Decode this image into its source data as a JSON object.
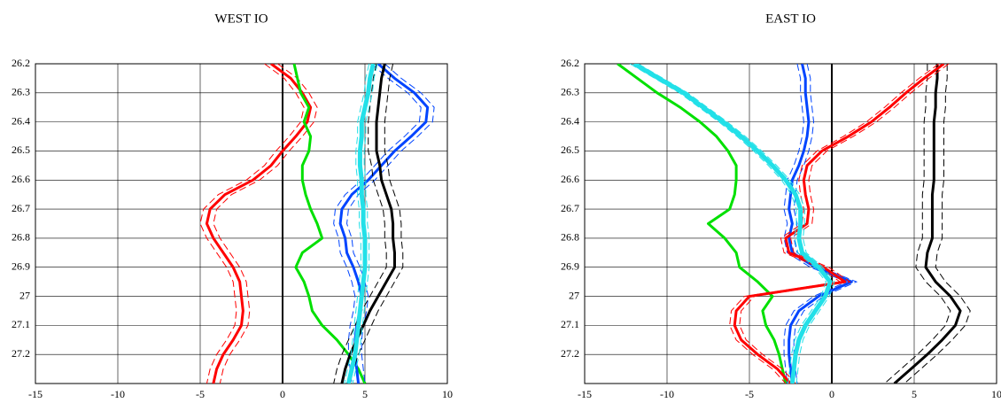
{
  "chart_data": [
    {
      "type": "line",
      "title": "WEST IO",
      "y": [
        26.2,
        26.25,
        26.3,
        26.35,
        26.4,
        26.45,
        26.5,
        26.55,
        26.6,
        26.65,
        26.7,
        26.75,
        26.8,
        26.85,
        26.9,
        26.95,
        27.0,
        27.05,
        27.1,
        27.15,
        27.2,
        27.25,
        27.3
      ],
      "ylim": [
        26.2,
        27.3
      ],
      "yticks": [
        26.2,
        26.3,
        26.4,
        26.5,
        26.6,
        26.7,
        26.8,
        26.9,
        27,
        27.1,
        27.2
      ],
      "xlim": [
        -15,
        10
      ],
      "xticks": [
        -15,
        -10,
        -5,
        0,
        5,
        10
      ],
      "grid": true,
      "y_inverted": true,
      "series": [
        {
          "color": "#ff0000",
          "error": 0.4,
          "values": [
            -0.7,
            0.5,
            1.2,
            1.7,
            1.5,
            0.8,
            0,
            -0.7,
            -1.8,
            -3.5,
            -4.4,
            -4.6,
            -4.2,
            -3.6,
            -3.0,
            -2.6,
            -2.5,
            -2.4,
            -2.5,
            -3.0,
            -3.6,
            -4.0,
            -4.2
          ]
        },
        {
          "color": "#00e000",
          "values": [
            0.7,
            0.9,
            1.1,
            1.6,
            1.3,
            1.7,
            1.6,
            1.2,
            1.2,
            1.4,
            1.7,
            2.1,
            2.4,
            1.2,
            0.8,
            1.3,
            1.6,
            1.8,
            2.4,
            3.3,
            4.0,
            4.6,
            5.0
          ]
        },
        {
          "color": "#0044ff",
          "error": 0.4,
          "values": [
            5.8,
            6.8,
            8.0,
            8.8,
            8.7,
            7.8,
            6.8,
            6.0,
            5.2,
            4.2,
            3.6,
            3.5,
            3.8,
            3.9,
            4.3,
            4.6,
            4.8,
            4.7,
            4.5,
            4.4,
            4.4,
            4.5,
            4.6
          ]
        },
        {
          "color": "#000000",
          "error": 0.5,
          "values": [
            6.2,
            6.0,
            5.9,
            5.8,
            5.7,
            5.7,
            5.7,
            5.9,
            6.0,
            6.3,
            6.6,
            6.7,
            6.7,
            6.8,
            6.8,
            6.3,
            5.8,
            5.3,
            4.9,
            4.5,
            4.1,
            3.8,
            3.6
          ]
        },
        {
          "color": "#22e0e8",
          "error": 0.25,
          "values": [
            5.5,
            5.3,
            5.2,
            5.0,
            4.8,
            4.8,
            4.7,
            4.7,
            4.8,
            4.8,
            4.9,
            4.9,
            5.0,
            5.0,
            5.0,
            4.9,
            4.8,
            4.7,
            4.6,
            4.5,
            4.4,
            4.2,
            4.0
          ]
        }
      ]
    },
    {
      "type": "line",
      "title": "EAST IO",
      "y": [
        26.2,
        26.25,
        26.3,
        26.35,
        26.4,
        26.45,
        26.5,
        26.55,
        26.6,
        26.65,
        26.7,
        26.75,
        26.8,
        26.85,
        26.9,
        26.95,
        27.0,
        27.05,
        27.1,
        27.15,
        27.2,
        27.25,
        27.3
      ],
      "ylim": [
        26.2,
        27.3
      ],
      "yticks": [
        26.2,
        26.3,
        26.4,
        26.5,
        26.6,
        26.7,
        26.8,
        26.9,
        27,
        27.1,
        27.2
      ],
      "xlim": [
        -15,
        10
      ],
      "xticks": [
        -15,
        -10,
        -5,
        0,
        5,
        10
      ],
      "grid": true,
      "y_inverted": true,
      "series": [
        {
          "color": "#00e000",
          "values": [
            -13.0,
            -11.8,
            -10.6,
            -9.2,
            -8.0,
            -7.0,
            -6.3,
            -5.8,
            -5.8,
            -5.9,
            -6.2,
            -7.5,
            -6.5,
            -5.8,
            -5.6,
            -4.5,
            -3.6,
            -4.2,
            -4.0,
            -3.5,
            -3.2,
            -3.0,
            -2.8
          ]
        },
        {
          "color": "#000000",
          "error": 0.6,
          "values": [
            6.4,
            6.4,
            6.3,
            6.3,
            6.2,
            6.2,
            6.2,
            6.2,
            6.2,
            6.1,
            6.1,
            6.1,
            6.1,
            5.8,
            5.7,
            6.3,
            7.2,
            7.8,
            7.5,
            6.7,
            5.8,
            4.8,
            3.8
          ]
        },
        {
          "color": "#0044ff",
          "error": 0.3,
          "values": [
            -1.8,
            -1.6,
            -1.6,
            -1.5,
            -1.4,
            -1.5,
            -1.7,
            -2.0,
            -2.4,
            -2.5,
            -2.6,
            -2.4,
            -2.6,
            -2.4,
            -1.0,
            1.2,
            -0.8,
            -2.0,
            -2.5,
            -2.6,
            -2.6,
            -2.5,
            -2.4
          ]
        },
        {
          "color": "#ff0000",
          "error": 0.3,
          "values": [
            6.8,
            5.6,
            4.5,
            3.5,
            2.4,
            1.0,
            -0.6,
            -1.5,
            -1.7,
            -1.6,
            -1.4,
            -1.5,
            -2.8,
            -2.6,
            -0.5,
            0.8,
            -5.0,
            -5.8,
            -5.9,
            -5.5,
            -4.5,
            -3.3,
            -2.5
          ]
        },
        {
          "color": "#22e0e8",
          "error": 0.25,
          "values": [
            -12.0,
            -10.5,
            -9.0,
            -7.8,
            -6.6,
            -5.5,
            -4.5,
            -3.6,
            -2.8,
            -2.2,
            -1.9,
            -1.9,
            -2.0,
            -1.8,
            -0.8,
            -0.1,
            -0.4,
            -1.0,
            -1.6,
            -2.0,
            -2.2,
            -2.3,
            -2.4
          ]
        }
      ]
    }
  ]
}
